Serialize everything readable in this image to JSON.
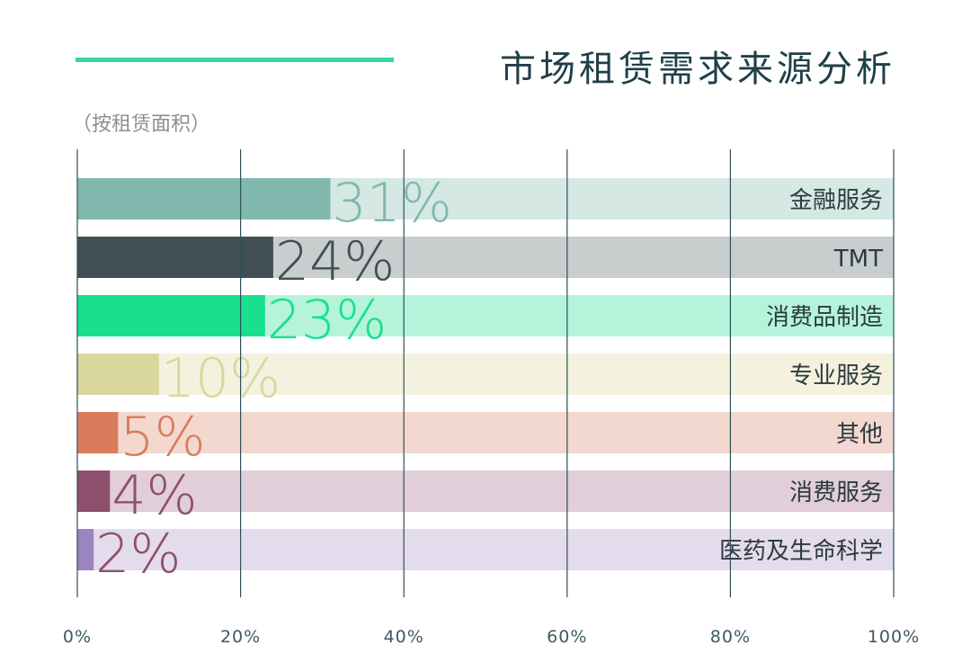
{
  "title": "市场租赁需求来源分析",
  "subtitle": "（按租赁面积）",
  "colors": {
    "title": "#1f3f4a",
    "accent": "#35d89a",
    "grid": "#2f4f5a"
  },
  "chart_data": {
    "type": "bar",
    "orientation": "horizontal",
    "stacked_to_100": true,
    "xlim": [
      0,
      100
    ],
    "x_ticks": [
      "0%",
      "20%",
      "40%",
      "60%",
      "80%",
      "100%"
    ],
    "grid": true,
    "categories": [
      "金融服务",
      "TMT",
      "消费品制造",
      "专业服务",
      "其他",
      "消费服务",
      "医药及生命科学"
    ],
    "values": [
      31,
      24,
      23,
      10,
      5,
      4,
      2
    ],
    "value_labels": [
      "31%",
      "24%",
      "23%",
      "10%",
      "5%",
      "4%",
      "2%"
    ],
    "bar_colors": [
      "#80b8ad",
      "#414f53",
      "#19e08d",
      "#dad79d",
      "#d87c5c",
      "#8e4f6d",
      "#9b84bf"
    ],
    "track_colors": [
      "#d5e8e3",
      "#c8cdcd",
      "#b5f4da",
      "#f4f2de",
      "#f3d8cf",
      "#e2ced8",
      "#e4dcec"
    ],
    "label_colors": [
      "#80b8ad",
      "#414f53",
      "#19e08d",
      "#dad79d",
      "#d87c5c",
      "#8e4f6d",
      "#8e4f6d"
    ]
  }
}
